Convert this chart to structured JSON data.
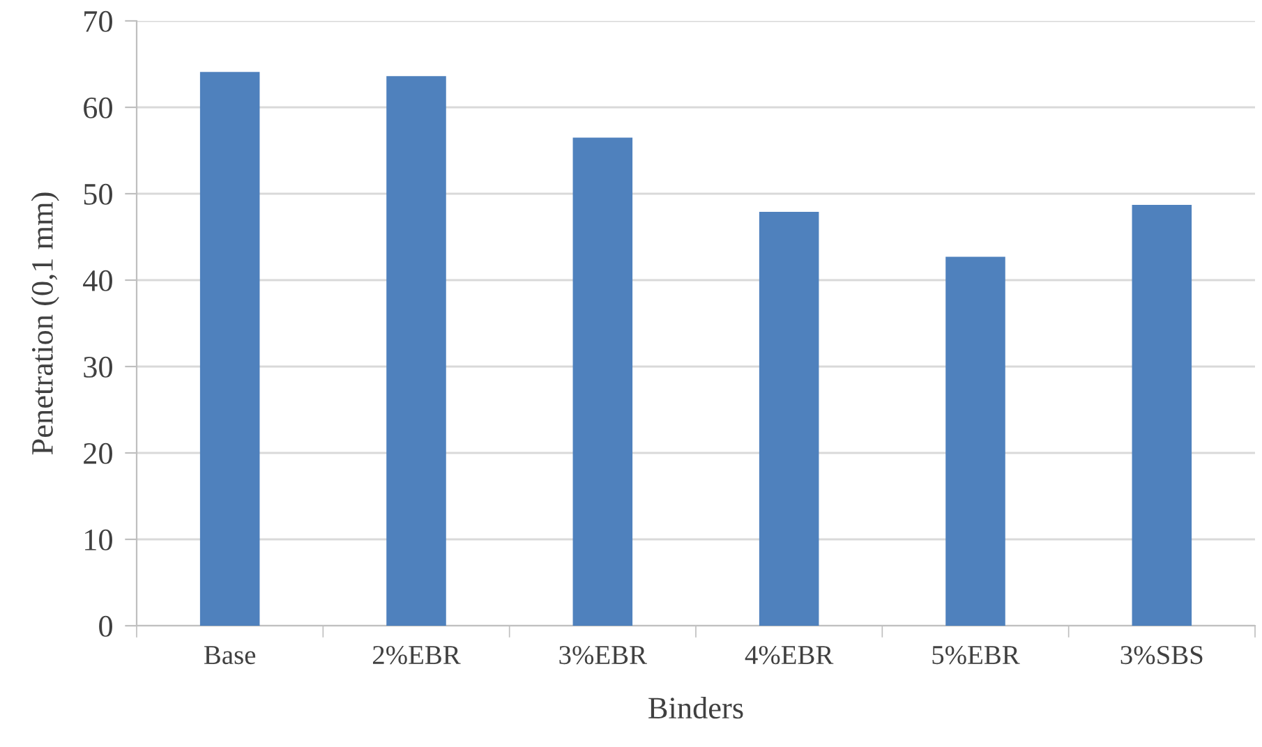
{
  "chart_data": {
    "type": "bar",
    "xlabel": "Binders",
    "ylabel": "Penetration (0,1 mm)",
    "categories": [
      "Base",
      "2%EBR",
      "3%EBR",
      "4%EBR",
      "5%EBR",
      "3%SBS"
    ],
    "values": [
      64.1,
      63.6,
      56.5,
      47.9,
      42.7,
      48.7
    ],
    "color": "#4f81bd",
    "ylim": [
      0,
      70
    ],
    "yticks": [
      0,
      10,
      20,
      30,
      40,
      50,
      60,
      70
    ],
    "grid": "y",
    "legend": false
  }
}
